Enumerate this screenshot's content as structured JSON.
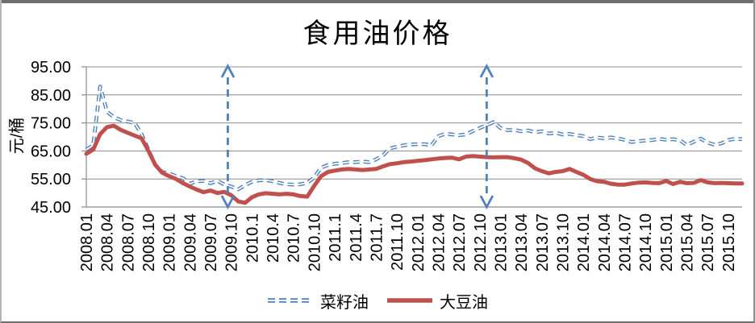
{
  "frame": {
    "top_strip_color": "#6f6f6f",
    "background": "#ffffff"
  },
  "chart_data": {
    "type": "line",
    "title": "食用油价格",
    "ylabel": "元/桶",
    "xlabel": "",
    "ylim": [
      45,
      95
    ],
    "y_tick_values": [
      95,
      85,
      75,
      65,
      55,
      45
    ],
    "y_tick_labels": [
      "95.00",
      "85.00",
      "75.00",
      "65.00",
      "55.00",
      "45.00"
    ],
    "grid": true,
    "grid_color": "#8c8c8c",
    "text_color": "#000000",
    "legend_position": "bottom",
    "x_frequency": "monthly",
    "x_start": "2008.01",
    "x_end": "2015.12",
    "x_point_count": 96,
    "x_tick_labels": [
      "2008.01",
      "2008.04",
      "2008.07",
      "2008.10",
      "2009.01",
      "2009.04",
      "2009.07",
      "2009.10",
      "2010.1",
      "2010.4",
      "2010.7",
      "2010.10",
      "2011.1",
      "2011.4",
      "2011.7",
      "2011.10",
      "2012.01",
      "2012.04",
      "2012.07",
      "2012.10",
      "2013.01",
      "2013.04",
      "2013.07",
      "2013.10",
      "2014.01",
      "2014.04",
      "2014.07",
      "2014.10",
      "2015.01",
      "2015.04",
      "2015.07",
      "2015.10"
    ],
    "x_tick_indices": [
      0,
      3,
      6,
      9,
      12,
      15,
      18,
      21,
      24,
      27,
      30,
      33,
      36,
      39,
      42,
      45,
      48,
      51,
      54,
      57,
      60,
      63,
      66,
      69,
      72,
      75,
      78,
      81,
      84,
      87,
      90,
      93
    ],
    "series": [
      {
        "name": "菜籽油",
        "color": "#4F81BD",
        "style": "dashed",
        "values": [
          65.5,
          67,
          88,
          79,
          77,
          76,
          75.5,
          75,
          71,
          65.5,
          60,
          57.5,
          57,
          56,
          55.3,
          53.3,
          54.2,
          54.3,
          53.5,
          54.3,
          53,
          52.3,
          51.3,
          52.8,
          54,
          54.5,
          54.6,
          54.2,
          53.6,
          53.1,
          53,
          53.1,
          53.6,
          55.5,
          59,
          60,
          60.4,
          60.7,
          61,
          61,
          61.2,
          61,
          62,
          63.5,
          65.9,
          66.5,
          67,
          67.3,
          67.4,
          67.4,
          67,
          70.3,
          71.1,
          70.9,
          70.6,
          70.9,
          72.1,
          73.2,
          74.2,
          75.3,
          73.2,
          72.4,
          72.5,
          72,
          72.3,
          71.7,
          72,
          71.2,
          71.5,
          70.9,
          71.1,
          70.6,
          70.3,
          69.2,
          69.8,
          69.5,
          69.8,
          69.5,
          68.9,
          68.2,
          68.5,
          68.7,
          68.9,
          69.3,
          69,
          69.2,
          68.8,
          67.1,
          68.3,
          69.4,
          68,
          67.2,
          67.7,
          68.9,
          69.3,
          69.2
        ]
      },
      {
        "name": "大豆油",
        "color": "#C0504D",
        "style": "solid",
        "values": [
          64,
          65.5,
          71,
          73.5,
          74,
          72.5,
          71.5,
          70.5,
          69.5,
          65,
          60,
          57.2,
          56,
          55,
          53.5,
          52.3,
          51.2,
          50.3,
          50.9,
          50,
          50.4,
          49.2,
          47,
          46.5,
          48.5,
          49.5,
          49.9,
          49.7,
          49.5,
          49.7,
          49.5,
          48.9,
          48.7,
          52.5,
          56,
          57.5,
          58,
          58.4,
          58.6,
          58.4,
          58.2,
          58.4,
          58.6,
          59.5,
          60.3,
          60.6,
          61,
          61.2,
          61.5,
          61.7,
          62,
          62.3,
          62.5,
          62.6,
          62,
          63,
          63.2,
          63,
          62.8,
          62.7,
          62.8,
          62.8,
          62.4,
          61.9,
          60.7,
          58.8,
          57.8,
          57,
          57.5,
          57.8,
          58.6,
          57.5,
          56.5,
          55,
          54.2,
          54,
          53.3,
          53,
          53,
          53.4,
          53.7,
          53.8,
          53.6,
          53.5,
          54.3,
          53.2,
          54,
          53.5,
          53.6,
          54.6,
          53.8,
          53.5,
          53.6,
          53.5,
          53.4,
          53.4
        ]
      }
    ],
    "annotations": [
      {
        "type": "vertical-double-arrow",
        "color": "#4F81BD",
        "at_x_index": 20.5,
        "near_label": "2009.10"
      },
      {
        "type": "vertical-double-arrow",
        "color": "#4F81BD",
        "at_x_index": 58,
        "near_label": "2012.10"
      }
    ]
  }
}
